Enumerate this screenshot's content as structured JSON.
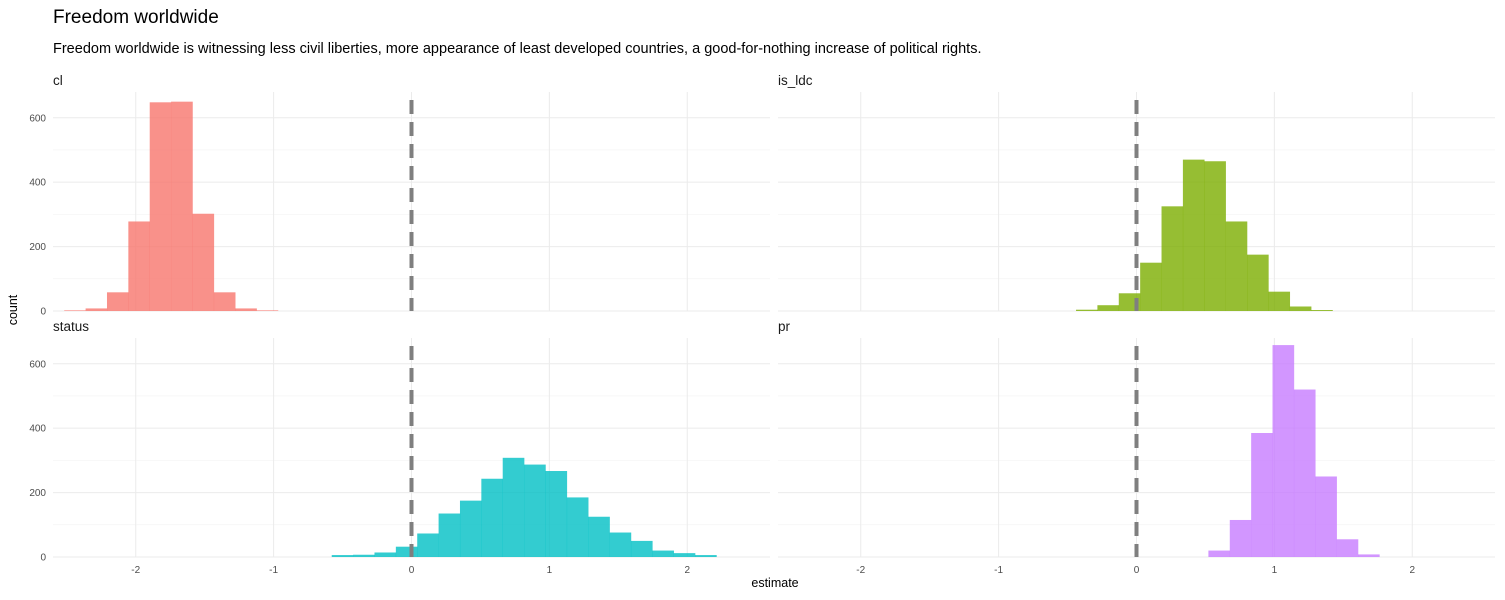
{
  "chart_data": {
    "type": "bar",
    "title": "Freedom worldwide",
    "subtitle": "Freedom worldwide is witnessing less civil liberties, more appearance of least developed countries, a good-for-nothing increase of political rights.",
    "xlabel": "estimate",
    "ylabel": "count",
    "xlim": [
      -2.6,
      2.6
    ],
    "ylim": [
      0,
      680
    ],
    "x_ticks": [
      -2,
      -1,
      0,
      1,
      2
    ],
    "y_ticks": [
      0,
      200,
      400,
      600
    ],
    "reference_line": {
      "x": 0,
      "style": "dashed",
      "color": "#7f7f7f"
    },
    "bin_width": 0.157,
    "grid": true,
    "legend": "none",
    "panels": [
      {
        "name": "cl",
        "color": "#F8766D",
        "bins": [
          {
            "x": -2.44,
            "count": 2
          },
          {
            "x": -2.285,
            "count": 8
          },
          {
            "x": -2.13,
            "count": 58
          },
          {
            "x": -1.975,
            "count": 278
          },
          {
            "x": -1.82,
            "count": 648
          },
          {
            "x": -1.665,
            "count": 650
          },
          {
            "x": -1.51,
            "count": 302
          },
          {
            "x": -1.355,
            "count": 58
          },
          {
            "x": -1.2,
            "count": 8
          },
          {
            "x": -1.045,
            "count": 2
          }
        ]
      },
      {
        "name": "is_ldc",
        "color": "#7CAE00",
        "bins": [
          {
            "x": -0.36,
            "count": 4
          },
          {
            "x": -0.205,
            "count": 18
          },
          {
            "x": -0.05,
            "count": 55
          },
          {
            "x": 0.105,
            "count": 150
          },
          {
            "x": 0.26,
            "count": 325
          },
          {
            "x": 0.415,
            "count": 470
          },
          {
            "x": 0.57,
            "count": 465
          },
          {
            "x": 0.725,
            "count": 278
          },
          {
            "x": 0.88,
            "count": 175
          },
          {
            "x": 1.035,
            "count": 60
          },
          {
            "x": 1.19,
            "count": 14
          },
          {
            "x": 1.345,
            "count": 3
          }
        ]
      },
      {
        "name": "status",
        "color": "#00BFC4",
        "bins": [
          {
            "x": -0.5,
            "count": 6
          },
          {
            "x": -0.345,
            "count": 7
          },
          {
            "x": -0.19,
            "count": 14
          },
          {
            "x": -0.035,
            "count": 32
          },
          {
            "x": 0.12,
            "count": 73
          },
          {
            "x": 0.275,
            "count": 135
          },
          {
            "x": 0.43,
            "count": 175
          },
          {
            "x": 0.585,
            "count": 243
          },
          {
            "x": 0.74,
            "count": 308
          },
          {
            "x": 0.895,
            "count": 287
          },
          {
            "x": 1.05,
            "count": 267
          },
          {
            "x": 1.205,
            "count": 185
          },
          {
            "x": 1.36,
            "count": 125
          },
          {
            "x": 1.515,
            "count": 76
          },
          {
            "x": 1.67,
            "count": 50
          },
          {
            "x": 1.825,
            "count": 20
          },
          {
            "x": 1.98,
            "count": 12
          },
          {
            "x": 2.135,
            "count": 6
          }
        ]
      },
      {
        "name": "pr",
        "color": "#C77CFF",
        "bins": [
          {
            "x": 0.6,
            "count": 20
          },
          {
            "x": 0.755,
            "count": 115
          },
          {
            "x": 0.91,
            "count": 385
          },
          {
            "x": 1.065,
            "count": 658
          },
          {
            "x": 1.22,
            "count": 520
          },
          {
            "x": 1.375,
            "count": 250
          },
          {
            "x": 1.53,
            "count": 55
          },
          {
            "x": 1.685,
            "count": 8
          }
        ]
      }
    ]
  }
}
